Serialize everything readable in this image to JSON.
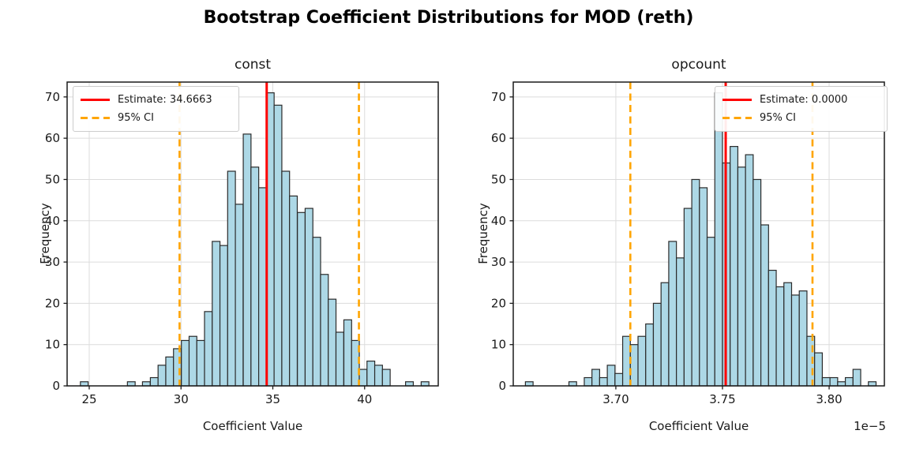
{
  "figure": {
    "title": "Bootstrap Coefficient Distributions for MOD (reth)",
    "background": "#ffffff",
    "colors": {
      "bar_fill": "#add8e6",
      "bar_edge": "#2b2b2b",
      "estimate_line": "#ff0000",
      "ci_line": "#ffa500",
      "grid": "#dcdcdc",
      "spine": "#1a1a1a",
      "text": "#1a1a1a",
      "legend_border": "#cccccc"
    }
  },
  "chart_data": [
    {
      "type": "histogram",
      "title": "const",
      "xlabel": "Coefficient Value",
      "ylabel": "Frequency",
      "legend": {
        "estimate_label": "Estimate: 34.6663",
        "ci_label": "95% CI"
      },
      "estimate": 34.6663,
      "ci": [
        29.92,
        39.69
      ],
      "xlim": [
        23.796,
        44.01
      ],
      "ylim": [
        0,
        73.6
      ],
      "xticks": [
        25,
        30,
        35,
        40
      ],
      "xtick_labels": [
        "25",
        "30",
        "35",
        "40"
      ],
      "yticks": [
        0,
        10,
        20,
        30,
        40,
        50,
        60,
        70
      ],
      "ytick_labels": [
        "0",
        "10",
        "20",
        "30",
        "40",
        "50",
        "60",
        "70"
      ],
      "grid": true,
      "legend_position": "upper-left",
      "bin_width": 0.4216,
      "bars": [
        [
          24.52,
          1
        ],
        [
          27.08,
          1
        ],
        [
          27.9,
          1
        ],
        [
          28.33,
          2
        ],
        [
          28.75,
          5
        ],
        [
          29.17,
          7
        ],
        [
          29.59,
          9
        ],
        [
          30.02,
          11
        ],
        [
          30.44,
          12
        ],
        [
          30.86,
          11
        ],
        [
          31.28,
          18
        ],
        [
          31.7,
          35
        ],
        [
          32.12,
          34
        ],
        [
          32.54,
          52
        ],
        [
          32.96,
          44
        ],
        [
          33.39,
          61
        ],
        [
          33.81,
          53
        ],
        [
          34.23,
          48
        ],
        [
          34.65,
          71
        ],
        [
          35.07,
          68
        ],
        [
          35.49,
          52
        ],
        [
          35.91,
          46
        ],
        [
          36.34,
          42
        ],
        [
          36.76,
          43
        ],
        [
          37.18,
          36
        ],
        [
          37.6,
          27
        ],
        [
          38.02,
          21
        ],
        [
          38.44,
          13
        ],
        [
          38.87,
          16
        ],
        [
          39.29,
          11
        ],
        [
          39.71,
          4
        ],
        [
          40.13,
          6
        ],
        [
          40.55,
          5
        ],
        [
          40.97,
          4
        ],
        [
          42.23,
          1
        ],
        [
          43.08,
          1
        ]
      ]
    },
    {
      "type": "histogram",
      "title": "opcount",
      "xlabel": "Coefficient Value",
      "ylabel": "Frequency",
      "legend": {
        "estimate_label": "Estimate: 0.0000",
        "ci_label": "95% CI"
      },
      "estimate": 3.7515,
      "ci": [
        3.7068,
        3.7922
      ],
      "xlim": [
        3.6519,
        3.8259
      ],
      "ylim": [
        0,
        73.6
      ],
      "xticks": [
        3.7,
        3.75,
        3.8
      ],
      "xtick_labels": [
        "3.70",
        "3.75",
        "3.80"
      ],
      "yticks": [
        0,
        10,
        20,
        30,
        40,
        50,
        60,
        70
      ],
      "ytick_labels": [
        "0",
        "10",
        "20",
        "30",
        "40",
        "50",
        "60",
        "70"
      ],
      "offset_label": "1e−5",
      "grid": true,
      "legend_position": "upper-right",
      "bin_width": 0.0036,
      "bars": [
        [
          3.6576,
          1
        ],
        [
          3.678,
          1
        ],
        [
          3.6852,
          2
        ],
        [
          3.6888,
          4
        ],
        [
          3.6924,
          2
        ],
        [
          3.696,
          5
        ],
        [
          3.6996,
          3
        ],
        [
          3.7032,
          12
        ],
        [
          3.7068,
          10
        ],
        [
          3.7104,
          12
        ],
        [
          3.714,
          15
        ],
        [
          3.7176,
          20
        ],
        [
          3.7212,
          25
        ],
        [
          3.7248,
          35
        ],
        [
          3.7284,
          31
        ],
        [
          3.732,
          43
        ],
        [
          3.7356,
          50
        ],
        [
          3.7392,
          48
        ],
        [
          3.7428,
          36
        ],
        [
          3.7464,
          71
        ],
        [
          3.75,
          54
        ],
        [
          3.7536,
          58
        ],
        [
          3.7572,
          53
        ],
        [
          3.7608,
          56
        ],
        [
          3.7644,
          50
        ],
        [
          3.768,
          39
        ],
        [
          3.7716,
          28
        ],
        [
          3.7752,
          24
        ],
        [
          3.7788,
          25
        ],
        [
          3.7824,
          22
        ],
        [
          3.786,
          23
        ],
        [
          3.7896,
          12
        ],
        [
          3.7932,
          8
        ],
        [
          3.7968,
          2
        ],
        [
          3.8004,
          2
        ],
        [
          3.804,
          1
        ],
        [
          3.8076,
          2
        ],
        [
          3.8112,
          4
        ],
        [
          3.8184,
          1
        ]
      ]
    }
  ]
}
